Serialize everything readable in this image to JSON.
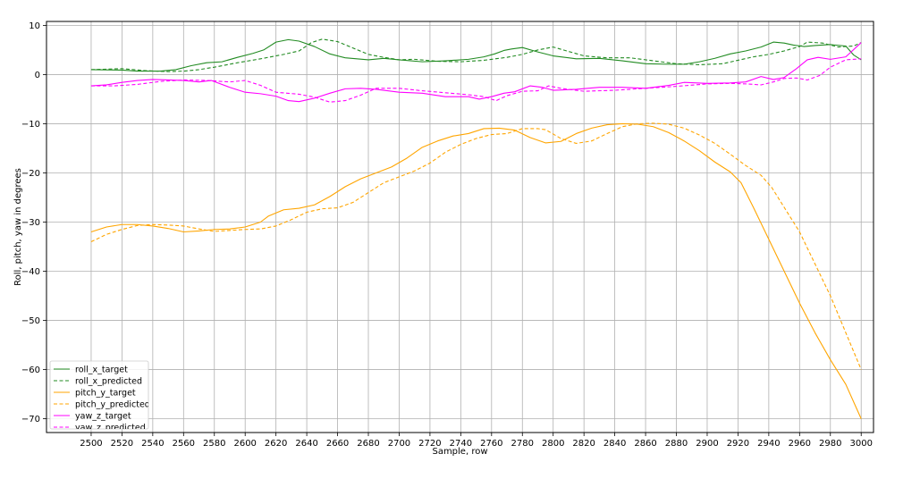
{
  "chart_data": {
    "type": "line",
    "title": "",
    "xlabel": "Sample, row",
    "ylabel": "Roll, pitch, yaw in degrees",
    "xlim": [
      2471,
      3008
    ],
    "ylim": [
      -72.8,
      10.8
    ],
    "xticks": [
      2500,
      2520,
      2540,
      2560,
      2580,
      2600,
      2620,
      2640,
      2660,
      2680,
      2700,
      2720,
      2740,
      2760,
      2780,
      2800,
      2820,
      2840,
      2860,
      2880,
      2900,
      2920,
      2940,
      2960,
      2980,
      3000
    ],
    "yticks": [
      10,
      0,
      -10,
      -20,
      -30,
      -40,
      -50,
      -60,
      -70
    ],
    "ytick_labels": [
      "10",
      "0",
      "−10",
      "−20",
      "−30",
      "−40",
      "−50",
      "−60",
      "−70"
    ],
    "grid": true,
    "legend_position": "lower-left",
    "series": [
      {
        "name": "roll_x_target",
        "color": "#228b22",
        "style": "solid",
        "points": [
          [
            2500,
            1.0
          ],
          [
            2520,
            0.9
          ],
          [
            2530,
            0.7
          ],
          [
            2545,
            0.7
          ],
          [
            2555,
            1.0
          ],
          [
            2565,
            1.8
          ],
          [
            2575,
            2.4
          ],
          [
            2585,
            2.6
          ],
          [
            2595,
            3.5
          ],
          [
            2605,
            4.3
          ],
          [
            2612,
            5.0
          ],
          [
            2620,
            6.6
          ],
          [
            2628,
            7.1
          ],
          [
            2635,
            6.8
          ],
          [
            2645,
            5.7
          ],
          [
            2655,
            4.2
          ],
          [
            2665,
            3.4
          ],
          [
            2680,
            3.0
          ],
          [
            2690,
            3.3
          ],
          [
            2700,
            3.0
          ],
          [
            2715,
            2.6
          ],
          [
            2730,
            2.8
          ],
          [
            2745,
            3.1
          ],
          [
            2755,
            3.6
          ],
          [
            2762,
            4.2
          ],
          [
            2768,
            4.9
          ],
          [
            2773,
            5.2
          ],
          [
            2780,
            5.5
          ],
          [
            2790,
            4.6
          ],
          [
            2800,
            3.8
          ],
          [
            2815,
            3.2
          ],
          [
            2830,
            3.3
          ],
          [
            2845,
            2.8
          ],
          [
            2860,
            2.2
          ],
          [
            2875,
            2.1
          ],
          [
            2885,
            2.1
          ],
          [
            2895,
            2.6
          ],
          [
            2905,
            3.3
          ],
          [
            2915,
            4.2
          ],
          [
            2925,
            4.8
          ],
          [
            2935,
            5.6
          ],
          [
            2943,
            6.6
          ],
          [
            2950,
            6.4
          ],
          [
            2956,
            6.0
          ],
          [
            2963,
            5.7
          ],
          [
            2970,
            5.9
          ],
          [
            2980,
            6.1
          ],
          [
            2990,
            5.8
          ],
          [
            2995,
            4.0
          ],
          [
            3000,
            3.0
          ]
        ]
      },
      {
        "name": "roll_x_predicted",
        "color": "#228b22",
        "style": "dashed",
        "points": [
          [
            2500,
            1.0
          ],
          [
            2520,
            1.2
          ],
          [
            2535,
            0.8
          ],
          [
            2550,
            0.6
          ],
          [
            2560,
            0.7
          ],
          [
            2570,
            1.0
          ],
          [
            2580,
            1.5
          ],
          [
            2595,
            2.4
          ],
          [
            2610,
            3.2
          ],
          [
            2625,
            4.1
          ],
          [
            2635,
            4.8
          ],
          [
            2643,
            6.5
          ],
          [
            2650,
            7.2
          ],
          [
            2660,
            6.7
          ],
          [
            2670,
            5.4
          ],
          [
            2680,
            4.1
          ],
          [
            2690,
            3.5
          ],
          [
            2700,
            3.0
          ],
          [
            2710,
            3.1
          ],
          [
            2725,
            2.7
          ],
          [
            2740,
            2.6
          ],
          [
            2755,
            2.9
          ],
          [
            2770,
            3.5
          ],
          [
            2780,
            4.1
          ],
          [
            2790,
            5.0
          ],
          [
            2800,
            5.6
          ],
          [
            2810,
            4.7
          ],
          [
            2820,
            3.8
          ],
          [
            2835,
            3.4
          ],
          [
            2850,
            3.4
          ],
          [
            2865,
            2.8
          ],
          [
            2880,
            2.2
          ],
          [
            2895,
            2.0
          ],
          [
            2910,
            2.2
          ],
          [
            2920,
            2.9
          ],
          [
            2930,
            3.6
          ],
          [
            2940,
            4.1
          ],
          [
            2950,
            4.8
          ],
          [
            2960,
            5.7
          ],
          [
            2965,
            6.6
          ],
          [
            2975,
            6.4
          ],
          [
            2985,
            5.6
          ],
          [
            2995,
            5.8
          ],
          [
            3000,
            6.5
          ]
        ]
      },
      {
        "name": "pitch_y_target",
        "color": "#ffa500",
        "style": "solid",
        "points": [
          [
            2500,
            -32.0
          ],
          [
            2510,
            -31.0
          ],
          [
            2520,
            -30.5
          ],
          [
            2530,
            -30.5
          ],
          [
            2540,
            -30.8
          ],
          [
            2550,
            -31.3
          ],
          [
            2560,
            -32.0
          ],
          [
            2570,
            -31.8
          ],
          [
            2580,
            -31.5
          ],
          [
            2590,
            -31.4
          ],
          [
            2600,
            -31.0
          ],
          [
            2610,
            -30.0
          ],
          [
            2615,
            -28.8
          ],
          [
            2625,
            -27.5
          ],
          [
            2635,
            -27.2
          ],
          [
            2645,
            -26.5
          ],
          [
            2655,
            -24.8
          ],
          [
            2665,
            -22.8
          ],
          [
            2675,
            -21.2
          ],
          [
            2685,
            -20.0
          ],
          [
            2695,
            -18.8
          ],
          [
            2705,
            -17.0
          ],
          [
            2715,
            -14.8
          ],
          [
            2725,
            -13.5
          ],
          [
            2735,
            -12.5
          ],
          [
            2745,
            -12.0
          ],
          [
            2755,
            -11.0
          ],
          [
            2765,
            -10.9
          ],
          [
            2775,
            -11.3
          ],
          [
            2785,
            -12.8
          ],
          [
            2795,
            -13.9
          ],
          [
            2805,
            -13.6
          ],
          [
            2815,
            -12.0
          ],
          [
            2825,
            -10.9
          ],
          [
            2835,
            -10.2
          ],
          [
            2845,
            -10.0
          ],
          [
            2855,
            -10.1
          ],
          [
            2865,
            -10.6
          ],
          [
            2875,
            -11.8
          ],
          [
            2885,
            -13.5
          ],
          [
            2895,
            -15.5
          ],
          [
            2905,
            -17.8
          ],
          [
            2915,
            -19.8
          ],
          [
            2922,
            -22.0
          ],
          [
            2930,
            -27.0
          ],
          [
            2940,
            -33.5
          ],
          [
            2950,
            -40.0
          ],
          [
            2960,
            -46.5
          ],
          [
            2970,
            -52.5
          ],
          [
            2980,
            -58.0
          ],
          [
            2990,
            -63.0
          ],
          [
            3000,
            -70.0
          ]
        ]
      },
      {
        "name": "pitch_y_predicted",
        "color": "#ffa500",
        "style": "dashed",
        "points": [
          [
            2500,
            -34.0
          ],
          [
            2510,
            -32.5
          ],
          [
            2520,
            -31.5
          ],
          [
            2530,
            -30.7
          ],
          [
            2540,
            -30.5
          ],
          [
            2550,
            -30.6
          ],
          [
            2560,
            -30.8
          ],
          [
            2570,
            -31.4
          ],
          [
            2580,
            -31.9
          ],
          [
            2590,
            -31.7
          ],
          [
            2600,
            -31.5
          ],
          [
            2610,
            -31.4
          ],
          [
            2620,
            -30.8
          ],
          [
            2630,
            -29.5
          ],
          [
            2640,
            -28.0
          ],
          [
            2650,
            -27.3
          ],
          [
            2660,
            -27.1
          ],
          [
            2670,
            -26.0
          ],
          [
            2680,
            -24.0
          ],
          [
            2690,
            -22.0
          ],
          [
            2700,
            -20.8
          ],
          [
            2710,
            -19.6
          ],
          [
            2720,
            -18.0
          ],
          [
            2730,
            -15.8
          ],
          [
            2740,
            -14.2
          ],
          [
            2750,
            -13.0
          ],
          [
            2760,
            -12.2
          ],
          [
            2770,
            -12.0
          ],
          [
            2780,
            -11.0
          ],
          [
            2790,
            -11.0
          ],
          [
            2795,
            -11.2
          ],
          [
            2805,
            -13.0
          ],
          [
            2815,
            -14.0
          ],
          [
            2825,
            -13.5
          ],
          [
            2835,
            -12.0
          ],
          [
            2845,
            -10.6
          ],
          [
            2855,
            -10.0
          ],
          [
            2865,
            -9.9
          ],
          [
            2875,
            -10.1
          ],
          [
            2885,
            -10.9
          ],
          [
            2895,
            -12.3
          ],
          [
            2905,
            -14.0
          ],
          [
            2915,
            -16.2
          ],
          [
            2925,
            -18.5
          ],
          [
            2935,
            -20.5
          ],
          [
            2942,
            -23.0
          ],
          [
            2950,
            -27.0
          ],
          [
            2960,
            -32.0
          ],
          [
            2970,
            -38.5
          ],
          [
            2980,
            -45.0
          ],
          [
            2990,
            -52.5
          ],
          [
            3000,
            -60.0
          ]
        ]
      },
      {
        "name": "yaw_z_target",
        "color": "#ff00ff",
        "style": "solid",
        "points": [
          [
            2500,
            -2.3
          ],
          [
            2510,
            -2.1
          ],
          [
            2520,
            -1.6
          ],
          [
            2530,
            -1.2
          ],
          [
            2540,
            -1.0
          ],
          [
            2550,
            -1.1
          ],
          [
            2560,
            -1.2
          ],
          [
            2570,
            -1.5
          ],
          [
            2578,
            -1.2
          ],
          [
            2590,
            -2.6
          ],
          [
            2600,
            -3.6
          ],
          [
            2610,
            -3.9
          ],
          [
            2620,
            -4.4
          ],
          [
            2628,
            -5.3
          ],
          [
            2635,
            -5.5
          ],
          [
            2645,
            -4.8
          ],
          [
            2655,
            -3.8
          ],
          [
            2665,
            -2.9
          ],
          [
            2675,
            -2.8
          ],
          [
            2685,
            -3.0
          ],
          [
            2700,
            -3.6
          ],
          [
            2715,
            -3.8
          ],
          [
            2730,
            -4.5
          ],
          [
            2745,
            -4.5
          ],
          [
            2752,
            -5.0
          ],
          [
            2760,
            -4.5
          ],
          [
            2768,
            -3.8
          ],
          [
            2775,
            -3.5
          ],
          [
            2785,
            -2.3
          ],
          [
            2793,
            -2.6
          ],
          [
            2800,
            -3.2
          ],
          [
            2815,
            -3.0
          ],
          [
            2830,
            -2.6
          ],
          [
            2845,
            -2.6
          ],
          [
            2860,
            -2.8
          ],
          [
            2875,
            -2.2
          ],
          [
            2885,
            -1.6
          ],
          [
            2900,
            -1.8
          ],
          [
            2915,
            -1.7
          ],
          [
            2925,
            -1.5
          ],
          [
            2935,
            -0.4
          ],
          [
            2943,
            -1.0
          ],
          [
            2950,
            -0.6
          ],
          [
            2958,
            1.2
          ],
          [
            2965,
            3.0
          ],
          [
            2972,
            3.5
          ],
          [
            2980,
            3.1
          ],
          [
            2990,
            3.6
          ],
          [
            3000,
            6.5
          ]
        ]
      },
      {
        "name": "yaw_z_predicted",
        "color": "#ff00ff",
        "style": "dashed",
        "points": [
          [
            2500,
            -2.3
          ],
          [
            2515,
            -2.3
          ],
          [
            2530,
            -2.0
          ],
          [
            2545,
            -1.4
          ],
          [
            2560,
            -1.1
          ],
          [
            2575,
            -1.2
          ],
          [
            2590,
            -1.5
          ],
          [
            2600,
            -1.2
          ],
          [
            2610,
            -2.2
          ],
          [
            2620,
            -3.6
          ],
          [
            2635,
            -4.0
          ],
          [
            2645,
            -4.6
          ],
          [
            2655,
            -5.6
          ],
          [
            2665,
            -5.3
          ],
          [
            2675,
            -4.2
          ],
          [
            2685,
            -2.8
          ],
          [
            2700,
            -2.8
          ],
          [
            2715,
            -3.3
          ],
          [
            2730,
            -3.7
          ],
          [
            2745,
            -4.1
          ],
          [
            2755,
            -4.5
          ],
          [
            2763,
            -5.3
          ],
          [
            2770,
            -4.3
          ],
          [
            2780,
            -3.4
          ],
          [
            2790,
            -3.3
          ],
          [
            2797,
            -2.3
          ],
          [
            2805,
            -2.8
          ],
          [
            2820,
            -3.4
          ],
          [
            2840,
            -3.2
          ],
          [
            2860,
            -2.8
          ],
          [
            2880,
            -2.4
          ],
          [
            2900,
            -1.9
          ],
          [
            2915,
            -1.8
          ],
          [
            2925,
            -1.9
          ],
          [
            2935,
            -2.1
          ],
          [
            2943,
            -1.5
          ],
          [
            2950,
            -0.8
          ],
          [
            2958,
            -0.7
          ],
          [
            2965,
            -1.1
          ],
          [
            2973,
            -0.2
          ],
          [
            2980,
            1.5
          ],
          [
            2990,
            3.0
          ],
          [
            3000,
            3.2
          ]
        ]
      }
    ]
  }
}
